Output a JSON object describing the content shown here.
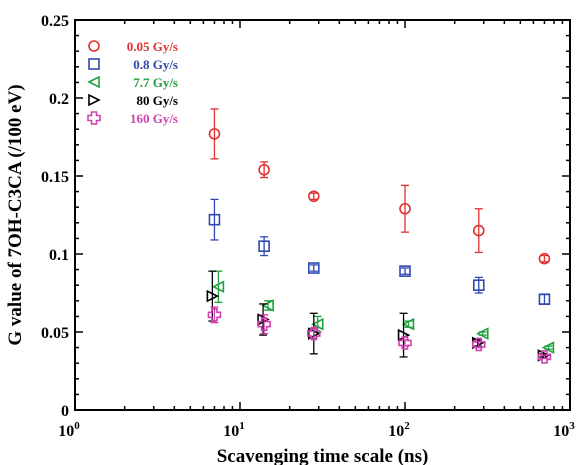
{
  "chart_data": {
    "type": "scatter",
    "title": "",
    "xlabel": "Scavenging time scale (ns)",
    "ylabel": "G value of 7OH-C3CA (/100 eV)",
    "x_scale": "log",
    "xlim": [
      1,
      1000
    ],
    "ylim": [
      0,
      0.25
    ],
    "x_ticks": [
      {
        "value": 1,
        "base": "10",
        "exp": "0"
      },
      {
        "value": 10,
        "base": "10",
        "exp": "1"
      },
      {
        "value": 100,
        "base": "10",
        "exp": "2"
      },
      {
        "value": 1000,
        "base": "10",
        "exp": "3"
      }
    ],
    "y_ticks": [
      {
        "value": 0,
        "label": "0"
      },
      {
        "value": 0.05,
        "label": "0.05"
      },
      {
        "value": 0.1,
        "label": "0.1"
      },
      {
        "value": 0.15,
        "label": "0.15"
      },
      {
        "value": 0.2,
        "label": "0.2"
      },
      {
        "value": 0.25,
        "label": "0.25"
      }
    ],
    "grid": false,
    "legend_position": "top-left",
    "x": [
      7,
      14,
      28,
      100,
      280,
      700
    ],
    "series": [
      {
        "name": "0.05 Gy/s",
        "marker": "circle",
        "color": "#e03030",
        "x": [
          7,
          14,
          28,
          100,
          280,
          700
        ],
        "y": [
          0.177,
          0.154,
          0.137,
          0.129,
          0.115,
          0.097
        ],
        "err": [
          0.016,
          0.005,
          0.002,
          0.015,
          0.014,
          0.002
        ]
      },
      {
        "name": "0.8 Gy/s",
        "marker": "square",
        "color": "#3048b0",
        "x": [
          7,
          14,
          28,
          100,
          280,
          700
        ],
        "y": [
          0.122,
          0.105,
          0.091,
          0.089,
          0.08,
          0.071
        ],
        "err": [
          0.013,
          0.006,
          0.002,
          0.002,
          0.005,
          0.003
        ]
      },
      {
        "name": "7.7 Gy/s",
        "marker": "triangle-left",
        "color": "#20a040",
        "x": [
          7.4,
          14.8,
          29.6,
          105,
          296,
          740
        ],
        "y": [
          0.079,
          0.067,
          0.055,
          0.055,
          0.049,
          0.04
        ],
        "err": [
          0.01,
          0.003,
          0.005,
          0.002,
          0.001,
          0.001
        ]
      },
      {
        "name": "80 Gy/s",
        "marker": "triangle-right",
        "color": "#000000",
        "x": [
          6.8,
          13.8,
          28,
          98,
          276,
          690
        ],
        "y": [
          0.073,
          0.058,
          0.049,
          0.048,
          0.043,
          0.035
        ],
        "err": [
          0.016,
          0.01,
          0.013,
          0.014,
          0.002,
          0.001
        ]
      },
      {
        "name": "160 Gy/s",
        "marker": "cross",
        "color": "#d040b0",
        "x": [
          7,
          14,
          28,
          100,
          280,
          700
        ],
        "y": [
          0.061,
          0.055,
          0.049,
          0.043,
          0.042,
          0.034
        ],
        "err": [
          0.005,
          0.006,
          0.003,
          0.002,
          0.002,
          0.001
        ]
      }
    ]
  }
}
